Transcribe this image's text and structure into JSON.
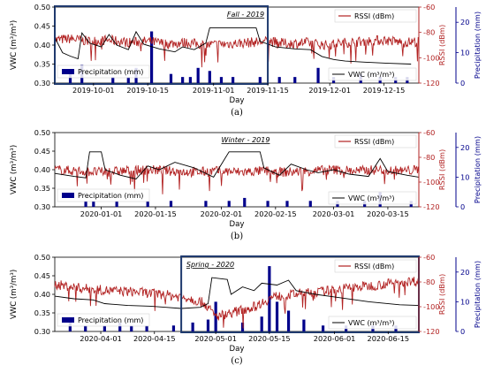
{
  "chart_data": [
    {
      "type": "line",
      "panel_label": "(a)",
      "season_label": "Fall - 2019",
      "xlabel": "Day",
      "y_left_label": "VWC (m³/m³)",
      "y_right1_label": "RSSI (dBm)",
      "y_right2_label": "Precipitation (mm)",
      "x_start": "2019-09-21",
      "x_end": "2019-12-24",
      "x_ticks": [
        "2019-10-01",
        "2019-10-15",
        "2019-11-01",
        "2019-11-15",
        "2019-12-01",
        "2019-12-15"
      ],
      "vwc_ylim": [
        0.3,
        0.5
      ],
      "vwc_ticks": [
        "0.30",
        "0.35",
        "0.40",
        "0.45",
        "0.50"
      ],
      "rssi_ylim": [
        -120,
        -60
      ],
      "rssi_ticks": [
        "-60",
        "-80",
        "-100",
        "-120"
      ],
      "precip_ylim": [
        0,
        25
      ],
      "precip_ticks": [
        "0",
        "10",
        "20"
      ],
      "highlight": [
        "2019-09-21",
        "2019-11-15"
      ],
      "legend": {
        "rssi": "RSSI (dBm)",
        "vwc": "VWC (m³/m³)",
        "precip": "Precipitation (mm)"
      },
      "series": [
        {
          "name": "VWC (m³/m³)",
          "color": "#000000",
          "points": [
            [
              "2019-09-21",
              0.42
            ],
            [
              "2019-09-23",
              0.38
            ],
            [
              "2019-09-25",
              0.371
            ],
            [
              "2019-09-27",
              0.364
            ],
            [
              "2019-09-28",
              0.432
            ],
            [
              "2019-09-30",
              0.405
            ],
            [
              "2019-10-03",
              0.395
            ],
            [
              "2019-10-05",
              0.428
            ],
            [
              "2019-10-07",
              0.4
            ],
            [
              "2019-10-10",
              0.388
            ],
            [
              "2019-10-12",
              0.435
            ],
            [
              "2019-10-14",
              0.402
            ],
            [
              "2019-10-18",
              0.39
            ],
            [
              "2019-10-22",
              0.382
            ],
            [
              "2019-10-24",
              0.395
            ],
            [
              "2019-10-27",
              0.388
            ],
            [
              "2019-10-30",
              0.405
            ],
            [
              "2019-10-31",
              0.445
            ],
            [
              "2019-11-12",
              0.445
            ],
            [
              "2019-11-13",
              0.41
            ],
            [
              "2019-11-17",
              0.395
            ],
            [
              "2019-11-22",
              0.39
            ],
            [
              "2019-11-26",
              0.388
            ],
            [
              "2019-11-29",
              0.37
            ],
            [
              "2019-12-02",
              0.362
            ],
            [
              "2019-12-05",
              0.358
            ],
            [
              "2019-12-10",
              0.355
            ],
            [
              "2019-12-16",
              0.352
            ],
            [
              "2019-12-22",
              0.35
            ]
          ]
        },
        {
          "name": "RSSI (dBm)",
          "color": "#b22222",
          "points": [
            [
              "2019-09-21",
              -86
            ],
            [
              "2019-09-25",
              -85
            ],
            [
              "2019-09-30",
              -87
            ],
            [
              "2019-10-05",
              -86
            ],
            [
              "2019-10-10",
              -88
            ],
            [
              "2019-10-15",
              -87
            ],
            [
              "2019-10-20",
              -89
            ],
            [
              "2019-10-25",
              -88
            ],
            [
              "2019-10-30",
              -90
            ],
            [
              "2019-11-05",
              -89
            ],
            [
              "2019-11-10",
              -88
            ],
            [
              "2019-11-15",
              -87
            ],
            [
              "2019-11-20",
              -89
            ],
            [
              "2019-11-25",
              -88
            ],
            [
              "2019-11-30",
              -90
            ],
            [
              "2019-12-05",
              -88
            ],
            [
              "2019-12-10",
              -87
            ],
            [
              "2019-12-15",
              -86
            ],
            [
              "2019-12-20",
              -88
            ],
            [
              "2019-12-24",
              -87
            ]
          ]
        }
      ],
      "precipitation": [
        [
          "2019-09-25",
          3
        ],
        [
          "2019-09-28",
          6
        ],
        [
          "2019-10-06",
          2
        ],
        [
          "2019-10-10",
          2
        ],
        [
          "2019-10-12",
          5
        ],
        [
          "2019-10-16",
          17
        ],
        [
          "2019-10-21",
          3
        ],
        [
          "2019-10-24",
          2
        ],
        [
          "2019-10-26",
          2
        ],
        [
          "2019-10-28",
          5
        ],
        [
          "2019-10-31",
          4
        ],
        [
          "2019-11-03",
          2
        ],
        [
          "2019-11-06",
          2
        ],
        [
          "2019-11-13",
          2
        ],
        [
          "2019-11-18",
          2
        ],
        [
          "2019-11-22",
          2
        ],
        [
          "2019-11-28",
          5
        ],
        [
          "2019-12-02",
          2
        ],
        [
          "2019-12-09",
          3
        ],
        [
          "2019-12-14",
          2
        ],
        [
          "2019-12-18",
          2
        ],
        [
          "2019-12-21",
          2
        ]
      ]
    },
    {
      "type": "line",
      "panel_label": "(b)",
      "season_label": "Winter - 2019",
      "xlabel": "Day",
      "y_left_label": "VWC (m³/m³)",
      "y_right1_label": "RSSI (dBm)",
      "y_right2_label": "Precipitation (mm)",
      "x_start": "2019-12-20",
      "x_end": "2020-03-23",
      "x_ticks": [
        "2020-01-01",
        "2020-01-15",
        "2020-02-01",
        "2020-02-15",
        "2020-03-01",
        "2020-03-15"
      ],
      "vwc_ylim": [
        0.3,
        0.5
      ],
      "vwc_ticks": [
        "0.30",
        "0.35",
        "0.40",
        "0.45",
        "0.50"
      ],
      "rssi_ylim": [
        -120,
        -60
      ],
      "rssi_ticks": [
        "-60",
        "-80",
        "-100",
        "-120"
      ],
      "precip_ylim": [
        0,
        25
      ],
      "precip_ticks": [
        "0",
        "10",
        "20"
      ],
      "highlight": [],
      "legend": {
        "rssi": "RSSI (dBm)",
        "vwc": "VWC (m³/m³)",
        "precip": "Precipitation (mm)"
      },
      "series": [
        {
          "name": "VWC (m³/m³)",
          "color": "#000000",
          "points": [
            [
              "2019-12-20",
              0.39
            ],
            [
              "2019-12-25",
              0.382
            ],
            [
              "2019-12-28",
              0.378
            ],
            [
              "2019-12-29",
              0.448
            ],
            [
              "2020-01-01",
              0.448
            ],
            [
              "2020-01-02",
              0.4
            ],
            [
              "2020-01-06",
              0.385
            ],
            [
              "2020-01-10",
              0.375
            ],
            [
              "2020-01-13",
              0.41
            ],
            [
              "2020-01-16",
              0.4
            ],
            [
              "2020-01-20",
              0.42
            ],
            [
              "2020-01-25",
              0.405
            ],
            [
              "2020-01-30",
              0.38
            ],
            [
              "2020-02-03",
              0.448
            ],
            [
              "2020-02-11",
              0.448
            ],
            [
              "2020-02-12",
              0.405
            ],
            [
              "2020-02-16",
              0.385
            ],
            [
              "2020-02-19",
              0.415
            ],
            [
              "2020-02-23",
              0.4
            ],
            [
              "2020-02-26",
              0.392
            ],
            [
              "2020-03-01",
              0.4
            ],
            [
              "2020-03-05",
              0.388
            ],
            [
              "2020-03-10",
              0.382
            ],
            [
              "2020-03-13",
              0.43
            ],
            [
              "2020-03-15",
              0.395
            ],
            [
              "2020-03-20",
              0.385
            ],
            [
              "2020-03-23",
              0.38
            ]
          ]
        },
        {
          "name": "RSSI (dBm)",
          "color": "#b22222",
          "points": [
            [
              "2019-12-20",
              -90
            ],
            [
              "2019-12-26",
              -91
            ],
            [
              "2020-01-01",
              -92
            ],
            [
              "2020-01-07",
              -91
            ],
            [
              "2020-01-13",
              -90
            ],
            [
              "2020-01-19",
              -91
            ],
            [
              "2020-01-25",
              -92
            ],
            [
              "2020-01-31",
              -91
            ],
            [
              "2020-02-06",
              -92
            ],
            [
              "2020-02-12",
              -91
            ],
            [
              "2020-02-18",
              -92
            ],
            [
              "2020-02-24",
              -91
            ],
            [
              "2020-03-01",
              -90
            ],
            [
              "2020-03-07",
              -91
            ],
            [
              "2020-03-13",
              -90
            ],
            [
              "2020-03-19",
              -91
            ],
            [
              "2020-03-23",
              -90
            ]
          ]
        }
      ],
      "precipitation": [
        [
          "2019-12-28",
          2
        ],
        [
          "2019-12-30",
          2
        ],
        [
          "2020-01-05",
          2
        ],
        [
          "2020-01-13",
          2
        ],
        [
          "2020-01-19",
          2
        ],
        [
          "2020-01-28",
          2
        ],
        [
          "2020-02-03",
          2
        ],
        [
          "2020-02-07",
          3
        ],
        [
          "2020-02-13",
          2
        ],
        [
          "2020-02-18",
          2
        ],
        [
          "2020-02-24",
          2
        ],
        [
          "2020-03-02",
          2
        ],
        [
          "2020-03-09",
          2
        ],
        [
          "2020-03-13",
          5
        ],
        [
          "2020-03-21",
          2
        ]
      ]
    },
    {
      "type": "line",
      "panel_label": "(c)",
      "season_label": "Spring - 2020",
      "xlabel": "Day",
      "y_left_label": "VWC (m³/m³)",
      "y_right1_label": "RSSI (dBm)",
      "y_right2_label": "Precipitation (mm)",
      "x_start": "2020-03-20",
      "x_end": "2020-06-23",
      "x_ticks": [
        "2020-04-01",
        "2020-04-15",
        "2020-05-01",
        "2020-05-15",
        "2020-06-01",
        "2020-06-15"
      ],
      "vwc_ylim": [
        0.3,
        0.5
      ],
      "vwc_ticks": [
        "0.30",
        "0.35",
        "0.40",
        "0.45",
        "0.50"
      ],
      "rssi_ylim": [
        -120,
        -60
      ],
      "rssi_ticks": [
        "-60",
        "-80",
        "-100",
        "-120"
      ],
      "precip_ylim": [
        0,
        25
      ],
      "precip_ticks": [
        "0",
        "10",
        "20"
      ],
      "highlight": [
        "2020-04-22",
        "2020-06-23"
      ],
      "legend": {
        "rssi": "RSSI (dBm)",
        "vwc": "VWC (m³/m³)",
        "precip": "Precipitation (mm)"
      },
      "series": [
        {
          "name": "VWC (m³/m³)",
          "color": "#000000",
          "points": [
            [
              "2020-03-20",
              0.395
            ],
            [
              "2020-03-25",
              0.388
            ],
            [
              "2020-03-30",
              0.385
            ],
            [
              "2020-04-02",
              0.375
            ],
            [
              "2020-04-08",
              0.37
            ],
            [
              "2020-04-14",
              0.368
            ],
            [
              "2020-04-18",
              0.365
            ],
            [
              "2020-04-22",
              0.362
            ],
            [
              "2020-04-27",
              0.365
            ],
            [
              "2020-04-29",
              0.375
            ],
            [
              "2020-04-30",
              0.445
            ],
            [
              "2020-05-04",
              0.44
            ],
            [
              "2020-05-05",
              0.4
            ],
            [
              "2020-05-08",
              0.42
            ],
            [
              "2020-05-11",
              0.41
            ],
            [
              "2020-05-13",
              0.43
            ],
            [
              "2020-05-17",
              0.425
            ],
            [
              "2020-05-20",
              0.438
            ],
            [
              "2020-05-22",
              0.41
            ],
            [
              "2020-05-27",
              0.4
            ],
            [
              "2020-06-03",
              0.39
            ],
            [
              "2020-06-10",
              0.38
            ],
            [
              "2020-06-18",
              0.372
            ],
            [
              "2020-06-23",
              0.37
            ]
          ]
        },
        {
          "name": "RSSI (dBm)",
          "color": "#b22222",
          "points": [
            [
              "2020-03-20",
              -82
            ],
            [
              "2020-03-27",
              -85
            ],
            [
              "2020-04-03",
              -87
            ],
            [
              "2020-04-10",
              -88
            ],
            [
              "2020-04-17",
              -90
            ],
            [
              "2020-04-24",
              -93
            ],
            [
              "2020-04-28",
              -97
            ],
            [
              "2020-05-01",
              -108
            ],
            [
              "2020-05-06",
              -104
            ],
            [
              "2020-05-11",
              -100
            ],
            [
              "2020-05-16",
              -92
            ],
            [
              "2020-05-21",
              -90
            ],
            [
              "2020-05-28",
              -88
            ],
            [
              "2020-06-04",
              -85
            ],
            [
              "2020-06-11",
              -83
            ],
            [
              "2020-06-18",
              -80
            ],
            [
              "2020-06-23",
              -79
            ]
          ]
        }
      ],
      "precipitation": [
        [
          "2020-03-24",
          3
        ],
        [
          "2020-03-28",
          2
        ],
        [
          "2020-04-02",
          2
        ],
        [
          "2020-04-06",
          3
        ],
        [
          "2020-04-09",
          2
        ],
        [
          "2020-04-13",
          2
        ],
        [
          "2020-04-20",
          2
        ],
        [
          "2020-04-25",
          3
        ],
        [
          "2020-04-29",
          4
        ],
        [
          "2020-05-01",
          10
        ],
        [
          "2020-05-08",
          3
        ],
        [
          "2020-05-13",
          5
        ],
        [
          "2020-05-15",
          22
        ],
        [
          "2020-05-17",
          10
        ],
        [
          "2020-05-20",
          7
        ],
        [
          "2020-05-24",
          4
        ],
        [
          "2020-05-29",
          2
        ],
        [
          "2020-06-04",
          2
        ],
        [
          "2020-06-11",
          2
        ],
        [
          "2020-06-17",
          2
        ]
      ]
    }
  ]
}
